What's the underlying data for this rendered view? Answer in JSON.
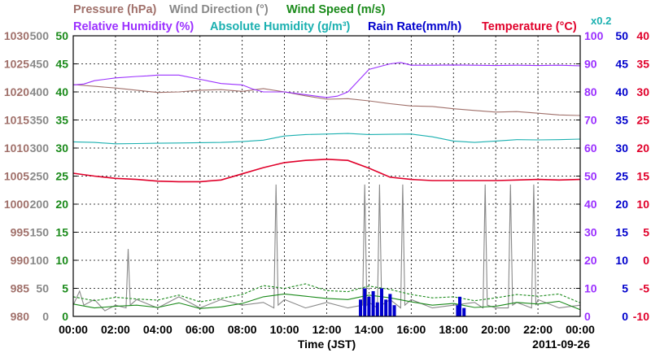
{
  "chart_data": {
    "type": "line",
    "title_lines": [
      {
        "row": 1,
        "parts": [
          {
            "text": "Pressure (hPa)",
            "color": "#a0706a"
          },
          {
            "text": "Wind Direction (°)",
            "color": "#888888"
          },
          {
            "text": "Wind Speed (m/s)",
            "color": "#1a8a1a"
          }
        ]
      },
      {
        "row": 2,
        "parts": [
          {
            "text": "Relative Humidity (%)",
            "color": "#9b30ff"
          },
          {
            "text": "Absolute Humidity (g/m³)",
            "color": "#1ab0b0"
          },
          {
            "text": "Rain Rate(mm/h)",
            "color": "#0000cc"
          },
          {
            "text": "Temperature (°C)",
            "color": "#e0002a"
          }
        ]
      }
    ],
    "rain_scale_note": "x0.2",
    "xlabel": "Time (JST)",
    "date_label": "2011-09-26",
    "x_ticks": [
      "00:00",
      "02:00",
      "04:00",
      "06:00",
      "08:00",
      "10:00",
      "12:00",
      "14:00",
      "16:00",
      "18:00",
      "20:00",
      "22:00",
      "00:00"
    ],
    "xlim_hours": [
      0,
      24
    ],
    "axes": {
      "pressure": {
        "ticks": [
          "1030",
          "1025",
          "1020",
          "1015",
          "1010",
          "1005",
          "1000",
          "995",
          "990",
          "985",
          "980"
        ],
        "range": [
          980,
          1030
        ],
        "color": "#a0706a"
      },
      "wind_direction": {
        "ticks": [
          "500",
          "450",
          "400",
          "350",
          "300",
          "250",
          "200",
          "150",
          "100",
          "50",
          "0"
        ],
        "range": [
          0,
          500
        ],
        "color": "#888888"
      },
      "wind_speed": {
        "ticks": [
          "50",
          "45",
          "40",
          "35",
          "30",
          "25",
          "20",
          "15",
          "10",
          "5",
          "0"
        ],
        "range": [
          0,
          50
        ],
        "color": "#1a8a1a"
      },
      "humidity": {
        "ticks": [
          "100",
          "90",
          "80",
          "70",
          "60",
          "50",
          "40",
          "30",
          "20",
          "10",
          "0"
        ],
        "range": [
          0,
          100
        ],
        "color": "#9b30ff"
      },
      "rain": {
        "ticks": [
          "50",
          "45",
          "40",
          "35",
          "30",
          "25",
          "20",
          "15",
          "10",
          "5",
          "0"
        ],
        "range": [
          0,
          50
        ],
        "color": "#0000cc"
      },
      "temperature": {
        "ticks": [
          "40",
          "35",
          "30",
          "25",
          "20",
          "15",
          "10",
          "5",
          "0",
          "-5",
          "-10"
        ],
        "range": [
          -10,
          40
        ],
        "color": "#e0002a"
      }
    },
    "grid": true,
    "series": [
      {
        "name": "Pressure (hPa)",
        "key": "pressure",
        "color": "#a0706a",
        "x": [
          0,
          1,
          2,
          3,
          4,
          5,
          6,
          7,
          8,
          9,
          10,
          11,
          12,
          13,
          14,
          15,
          16,
          17,
          18,
          19,
          20,
          21,
          22,
          23,
          24
        ],
        "y": [
          1021.3,
          1021.0,
          1020.7,
          1020.3,
          1019.9,
          1020.0,
          1020.3,
          1020.4,
          1020.1,
          1020.6,
          1020.0,
          1019.3,
          1018.7,
          1018.8,
          1018.4,
          1017.9,
          1017.5,
          1017.4,
          1017.0,
          1016.7,
          1016.4,
          1016.5,
          1016.2,
          1015.9,
          1015.8
        ]
      },
      {
        "name": "Relative Humidity (%)",
        "key": "humidity",
        "color": "#9b30ff",
        "x": [
          0,
          0.5,
          1,
          2,
          3,
          3.5,
          4,
          5,
          6,
          7,
          8,
          8.5,
          9,
          10,
          11,
          12,
          12.5,
          13,
          13.5,
          14,
          14.5,
          15,
          15.5,
          16,
          17,
          18,
          19,
          20,
          21,
          22,
          23,
          24
        ],
        "y": [
          82.5,
          82.8,
          84,
          85,
          85.5,
          85.7,
          86,
          86,
          84.5,
          83,
          82.5,
          81,
          80,
          80,
          79,
          78,
          78.5,
          80,
          84,
          88,
          89,
          90,
          90.5,
          89.5,
          89.5,
          89.6,
          89.5,
          89.4,
          89.5,
          89.4,
          89.5,
          89.3
        ]
      },
      {
        "name": "Absolute Humidity (g/m³)",
        "key": "humidity",
        "color": "#1ab0b0",
        "x": [
          0,
          1,
          2,
          3,
          4,
          5,
          6,
          7,
          8,
          9,
          10,
          11,
          12,
          13,
          14,
          15,
          16,
          17,
          18,
          19,
          20,
          21,
          22,
          23,
          24
        ],
        "y": [
          62.2,
          62.0,
          61.5,
          61.6,
          61.7,
          61.8,
          61.9,
          62.0,
          62.3,
          62.8,
          64.3,
          64.8,
          65.0,
          65.2,
          64.8,
          64.9,
          65.0,
          64.0,
          62.5,
          62.0,
          62.5,
          63.0,
          62.9,
          63.0,
          63.2
        ]
      },
      {
        "name": "Temperature (°C)",
        "key": "temperature",
        "color": "#e0002a",
        "x": [
          0,
          1,
          2,
          3,
          4,
          5,
          6,
          7,
          8,
          9,
          10,
          11,
          12,
          13,
          14,
          15,
          16,
          17,
          18,
          19,
          20,
          21,
          22,
          23,
          24
        ],
        "y": [
          15.5,
          15.0,
          14.6,
          14.4,
          14.1,
          14.0,
          14.0,
          14.3,
          15.4,
          16.5,
          17.4,
          17.8,
          18.0,
          17.8,
          16.4,
          14.8,
          14.4,
          14.2,
          14.2,
          14.2,
          14.2,
          14.3,
          14.4,
          14.3,
          14.4
        ]
      },
      {
        "name": "Wind Direction (°)",
        "key": "wind_direction",
        "color": "#888888",
        "x": [
          0,
          0.3,
          0.5,
          1,
          1.5,
          2,
          2.5,
          2.6,
          2.7,
          3,
          4,
          5,
          6,
          7,
          8,
          9,
          9.5,
          9.6,
          9.7,
          10,
          11,
          12,
          13,
          13.7,
          13.8,
          13.9,
          14,
          14.4,
          14.5,
          14.6,
          15,
          15.5,
          15.6,
          15.7,
          16,
          17,
          18,
          19,
          19.4,
          19.5,
          19.6,
          20,
          20.6,
          20.7,
          20.8,
          21,
          21.7,
          21.8,
          21.9,
          22,
          23,
          24
        ],
        "y": [
          20,
          45,
          20,
          30,
          10,
          20,
          15,
          120,
          20,
          30,
          15,
          35,
          15,
          30,
          20,
          25,
          15,
          235,
          20,
          30,
          15,
          25,
          15,
          20,
          235,
          20,
          25,
          15,
          235,
          20,
          30,
          15,
          235,
          20,
          30,
          15,
          20,
          25,
          15,
          235,
          20,
          15,
          15,
          235,
          20,
          25,
          15,
          235,
          20,
          30,
          15,
          20
        ]
      },
      {
        "name": "Wind Speed (m/s)",
        "key": "wind_speed",
        "color": "#1a8a1a",
        "x": [
          0,
          1,
          2,
          3,
          4,
          5,
          6,
          7,
          8,
          9,
          10,
          11,
          12,
          13,
          14,
          15,
          16,
          17,
          18,
          19,
          20,
          21,
          22,
          23,
          24
        ],
        "y": [
          2.2,
          1.5,
          1.8,
          2.0,
          1.6,
          2.4,
          1.4,
          1.7,
          2.3,
          3.5,
          4.0,
          3.6,
          3.2,
          3.0,
          3.8,
          3.3,
          2.6,
          2.0,
          2.3,
          1.6,
          1.8,
          2.5,
          2.2,
          2.7,
          1.2
        ]
      },
      {
        "name": "Wind Speed Max (m/s)",
        "key": "wind_speed",
        "color": "#1a8a1a",
        "dashed": true,
        "x": [
          0,
          1,
          2,
          3,
          4,
          5,
          6,
          7,
          8,
          9,
          10,
          11,
          12,
          13,
          14,
          15,
          16,
          17,
          18,
          19,
          20,
          21,
          22,
          23,
          24
        ],
        "y": [
          3.5,
          2.8,
          3.4,
          3.1,
          2.9,
          3.8,
          2.6,
          3.2,
          3.9,
          5.5,
          5.0,
          5.8,
          4.6,
          4.4,
          5.4,
          4.8,
          3.9,
          3.3,
          3.5,
          2.8,
          3.3,
          3.9,
          3.6,
          4.0,
          2.4
        ]
      },
      {
        "name": "Rain Rate(mm/h)",
        "key": "rain",
        "color": "#0000cc",
        "x": [
          13.6,
          13.8,
          14,
          14.2,
          14.4,
          14.6,
          14.8,
          15,
          15.2,
          18.2,
          18.3,
          18.5
        ],
        "y": [
          3.0,
          5.0,
          3.5,
          4.5,
          2.5,
          5.0,
          3.0,
          4.0,
          2.0,
          2.0,
          3.5,
          1.5
        ]
      }
    ]
  }
}
